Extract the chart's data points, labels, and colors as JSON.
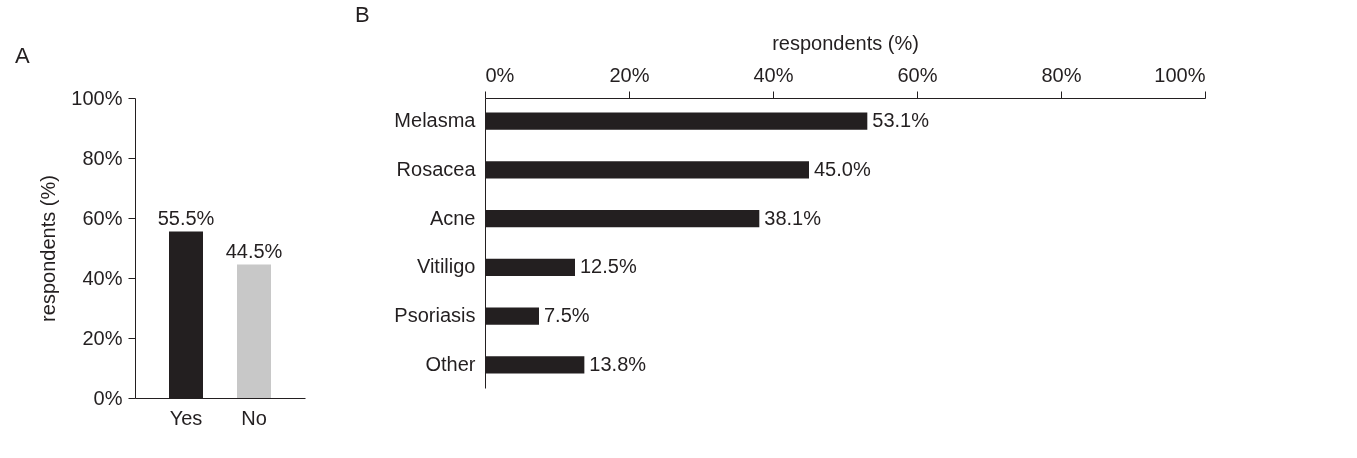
{
  "chart_data": [
    {
      "type": "bar",
      "title": "A",
      "ylabel": "respondents (%)",
      "categories": [
        "Yes",
        "No"
      ],
      "values": [
        55.5,
        44.5
      ],
      "colors": [
        "#231f20",
        "#c8c8c8"
      ],
      "value_labels": [
        "55.5%",
        "44.5%"
      ],
      "ylim": [
        0,
        100
      ],
      "yticks": [
        {
          "value": 0,
          "label": "0%"
        },
        {
          "value": 20,
          "label": "20%"
        },
        {
          "value": 40,
          "label": "40%"
        },
        {
          "value": 60,
          "label": "60%"
        },
        {
          "value": 80,
          "label": "80%"
        },
        {
          "value": 100,
          "label": "100%"
        }
      ],
      "grid": false
    },
    {
      "type": "bar",
      "title": "B",
      "orientation": "horizontal",
      "xlabel": "respondents (%)",
      "categories": [
        "Melasma",
        "Rosacea",
        "Acne",
        "Vitiligo",
        "Psoriasis",
        "Other"
      ],
      "values": [
        53.1,
        45.0,
        38.1,
        12.5,
        7.5,
        13.8
      ],
      "color": "#231f20",
      "value_labels": [
        "53.1%",
        "45.0%",
        "38.1%",
        "12.5%",
        "7.5%",
        "13.8%"
      ],
      "xlim": [
        0,
        100
      ],
      "xticks": [
        {
          "value": 0,
          "label": "0%"
        },
        {
          "value": 20,
          "label": "20%"
        },
        {
          "value": 40,
          "label": "40%"
        },
        {
          "value": 60,
          "label": "60%"
        },
        {
          "value": 80,
          "label": "80%"
        },
        {
          "value": 100,
          "label": "100%"
        }
      ],
      "grid": false
    }
  ]
}
